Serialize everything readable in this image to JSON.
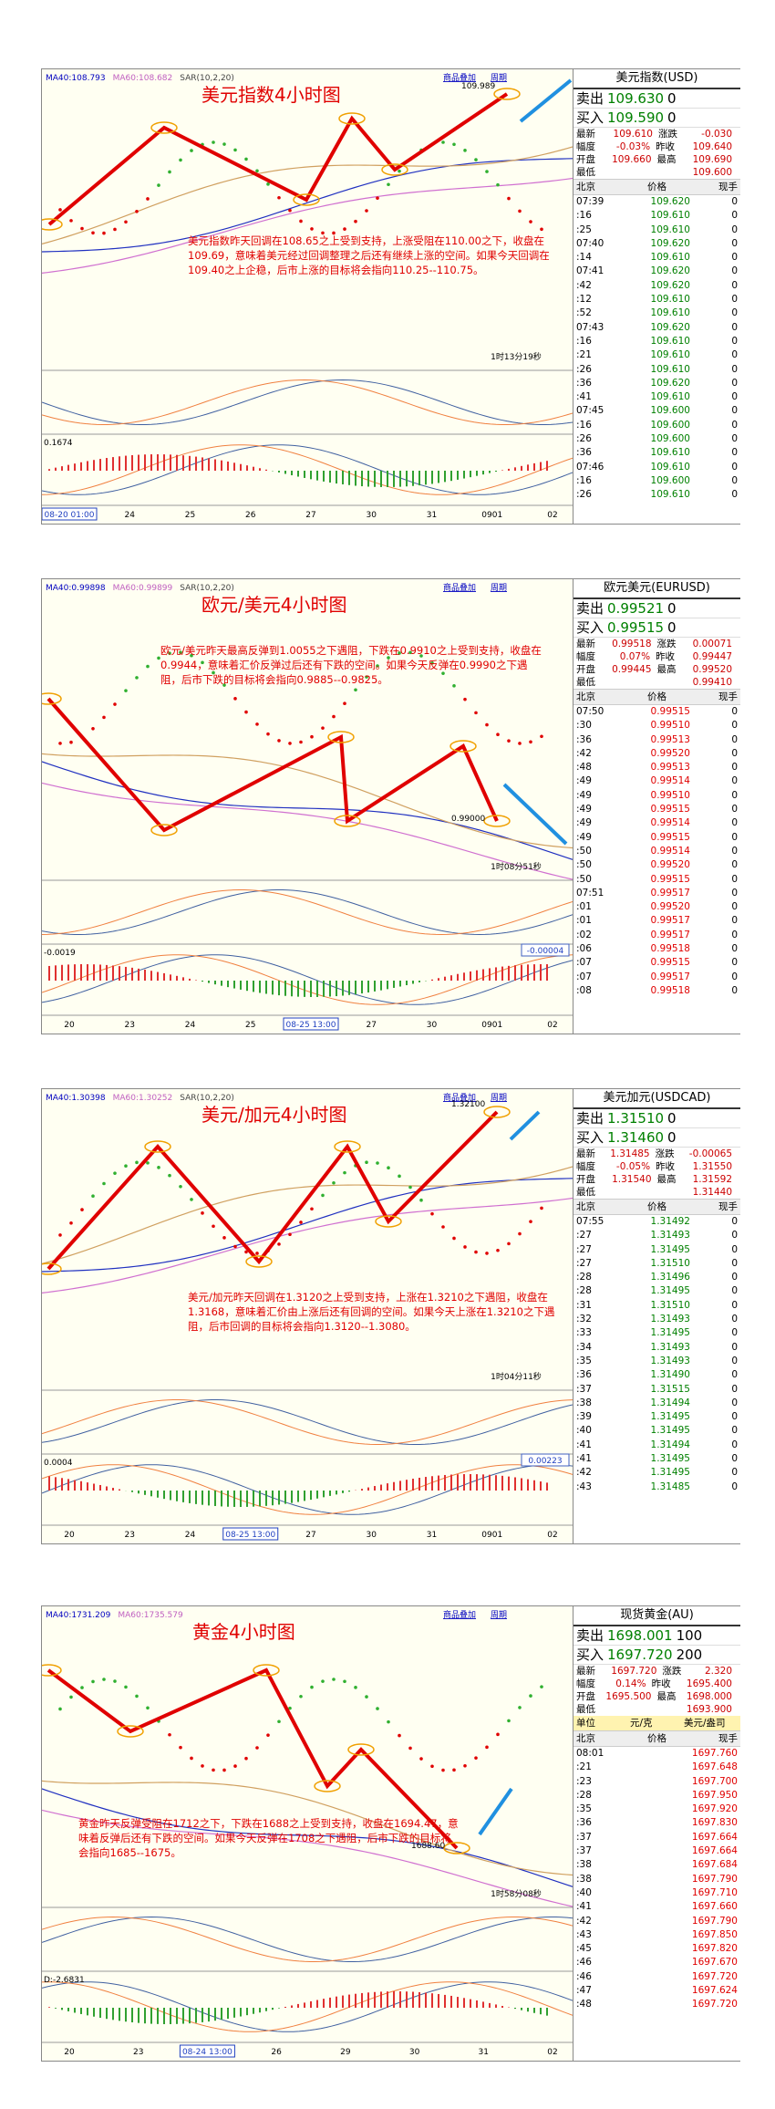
{
  "panels": [
    {
      "title": "美元指数4小时图",
      "toolbar": [
        "商品叠加",
        "周期"
      ],
      "indicators": [
        "MA40:108.793",
        "MA60:108.682",
        "SAR(10,2,20)"
      ],
      "price_label": "109.989",
      "countdown": "1时13分19秒",
      "sub_label": "0.1674",
      "annotation": "美元指数昨天回调在108.65之上受到支持，上涨受阻在110.00之下，收盘在109.69，意味着美元经过回调整理之后还有继续上涨的空间。如果今天回调在109.40之上企稳，后市上涨的目标将会指向110.25--110.75。",
      "xlabels": [
        "08-20 01:00",
        "24",
        "25",
        "26",
        "27",
        "30",
        "31",
        "0901",
        "02"
      ],
      "quote": {
        "name": "美元指数(USD)",
        "sell": [
          "卖出",
          "109.630",
          "0"
        ],
        "buy": [
          "买入",
          "109.590",
          "0"
        ],
        "stats": [
          [
            "最新",
            "109.610",
            "涨跌",
            "-0.030"
          ],
          [
            "幅度",
            "-0.03%",
            "昨收",
            "109.640"
          ],
          [
            "开盘",
            "109.660",
            "最高",
            "109.690"
          ],
          [
            "最低",
            "109.600"
          ]
        ],
        "columns": [
          "北京",
          "价格",
          "现手"
        ],
        "tick_color": "#008000",
        "ticks": [
          [
            "07:39",
            "109.620",
            "0"
          ],
          [
            ":16",
            "109.610",
            "0"
          ],
          [
            ":25",
            "109.610",
            "0"
          ],
          [
            "07:40",
            "109.620",
            "0"
          ],
          [
            ":14",
            "109.610",
            "0"
          ],
          [
            "07:41",
            "109.620",
            "0"
          ],
          [
            ":42",
            "109.620",
            "0"
          ],
          [
            ":12",
            "109.610",
            "0"
          ],
          [
            ":52",
            "109.610",
            "0"
          ],
          [
            "07:43",
            "109.620",
            "0"
          ],
          [
            ":16",
            "109.610",
            "0"
          ],
          [
            ":21",
            "109.610",
            "0"
          ],
          [
            ":26",
            "109.610",
            "0"
          ],
          [
            ":36",
            "109.620",
            "0"
          ],
          [
            ":41",
            "109.610",
            "0"
          ],
          [
            "07:45",
            "109.600",
            "0"
          ],
          [
            ":16",
            "109.600",
            "0"
          ],
          [
            ":26",
            "109.600",
            "0"
          ],
          [
            ":36",
            "109.610",
            "0"
          ],
          [
            "07:46",
            "109.610",
            "0"
          ],
          [
            ":16",
            "109.600",
            "0"
          ],
          [
            ":26",
            "109.610",
            "0"
          ]
        ]
      }
    },
    {
      "title": "欧元/美元4小时图",
      "toolbar": [
        "商品叠加",
        "周期"
      ],
      "indicators": [
        "MA40:0.99898",
        "MA60:0.99899",
        "SAR(10,2,20)"
      ],
      "price_label": "0.99000",
      "countdown": "1时08分51秒",
      "sub_label": "-0.0019",
      "sub_value": "-0.00004",
      "annotation": "欧元/美元昨天最高反弹到1.0055之下遇阻，下跌在0.9910之上受到支持，收盘在0.9944，意味着汇价反弹过后还有下跌的空间。如果今天反弹在0.9990之下遇阻，后市下跌的目标将会指向0.9885--0.9825。",
      "xlabels": [
        "20",
        "23",
        "24",
        "25",
        "08-25 13:00",
        "27",
        "30",
        "0901",
        "02"
      ],
      "quote": {
        "name": "欧元美元(EURUSD)",
        "sell": [
          "卖出",
          "0.99521",
          "0"
        ],
        "buy": [
          "买入",
          "0.99515",
          "0"
        ],
        "stats": [
          [
            "最新",
            "0.99518",
            "涨跌",
            "0.00071"
          ],
          [
            "幅度",
            "0.07%",
            "昨收",
            "0.99447"
          ],
          [
            "开盘",
            "0.99445",
            "最高",
            "0.99520"
          ],
          [
            "最低",
            "0.99410"
          ]
        ],
        "columns": [
          "北京",
          "价格",
          "现手"
        ],
        "tick_color": "#e00000",
        "ticks": [
          [
            "07:50",
            "0.99515",
            "0"
          ],
          [
            ":30",
            "0.99510",
            "0"
          ],
          [
            ":36",
            "0.99513",
            "0"
          ],
          [
            ":42",
            "0.99520",
            "0"
          ],
          [
            ":48",
            "0.99513",
            "0"
          ],
          [
            ":49",
            "0.99514",
            "0"
          ],
          [
            ":49",
            "0.99510",
            "0"
          ],
          [
            ":49",
            "0.99515",
            "0"
          ],
          [
            ":49",
            "0.99514",
            "0"
          ],
          [
            ":49",
            "0.99515",
            "0"
          ],
          [
            ":50",
            "0.99514",
            "0"
          ],
          [
            ":50",
            "0.99520",
            "0"
          ],
          [
            ":50",
            "0.99515",
            "0"
          ],
          [
            "07:51",
            "0.99517",
            "0"
          ],
          [
            ":01",
            "0.99520",
            "0"
          ],
          [
            ":01",
            "0.99517",
            "0"
          ],
          [
            ":02",
            "0.99517",
            "0"
          ],
          [
            ":06",
            "0.99518",
            "0"
          ],
          [
            ":07",
            "0.99515",
            "0"
          ],
          [
            ":07",
            "0.99517",
            "0"
          ],
          [
            ":08",
            "0.99518",
            "0"
          ]
        ]
      }
    },
    {
      "title": "美元/加元4小时图",
      "toolbar": [
        "商品叠加",
        "周期"
      ],
      "indicators": [
        "MA40:1.30398",
        "MA60:1.30252",
        "SAR(10,2,20)"
      ],
      "price_label": "1.32100",
      "countdown": "1时04分11秒",
      "sub_label": "0.0004",
      "sub_value": "0.00223",
      "annotation": "美元/加元昨天回调在1.3120之上受到支持，上涨在1.3210之下遇阻，收盘在1.3168，意味着汇价由上涨后还有回调的空间。如果今天上涨在1.3210之下遇阻，后市回调的目标将会指向1.3120--1.3080。",
      "xlabels": [
        "20",
        "23",
        "24",
        "08-25 13:00",
        "27",
        "30",
        "31",
        "0901",
        "02"
      ],
      "quote": {
        "name": "美元加元(USDCAD)",
        "sell": [
          "卖出",
          "1.31510",
          "0"
        ],
        "buy": [
          "买入",
          "1.31460",
          "0"
        ],
        "stats": [
          [
            "最新",
            "1.31485",
            "涨跌",
            "-0.00065"
          ],
          [
            "幅度",
            "-0.05%",
            "昨收",
            "1.31550"
          ],
          [
            "开盘",
            "1.31540",
            "最高",
            "1.31592"
          ],
          [
            "最低",
            "1.31440"
          ]
        ],
        "columns": [
          "北京",
          "价格",
          "现手"
        ],
        "tick_color": "#008000",
        "ticks": [
          [
            "07:55",
            "1.31492",
            "0"
          ],
          [
            ":27",
            "1.31493",
            "0"
          ],
          [
            ":27",
            "1.31495",
            "0"
          ],
          [
            ":27",
            "1.31510",
            "0"
          ],
          [
            ":28",
            "1.31496",
            "0"
          ],
          [
            ":28",
            "1.31495",
            "0"
          ],
          [
            ":31",
            "1.31510",
            "0"
          ],
          [
            ":32",
            "1.31493",
            "0"
          ],
          [
            ":33",
            "1.31495",
            "0"
          ],
          [
            ":34",
            "1.31493",
            "0"
          ],
          [
            ":35",
            "1.31493",
            "0"
          ],
          [
            ":36",
            "1.31490",
            "0"
          ],
          [
            ":37",
            "1.31515",
            "0"
          ],
          [
            ":38",
            "1.31494",
            "0"
          ],
          [
            ":39",
            "1.31495",
            "0"
          ],
          [
            ":40",
            "1.31495",
            "0"
          ],
          [
            ":41",
            "1.31494",
            "0"
          ],
          [
            ":41",
            "1.31495",
            "0"
          ],
          [
            ":42",
            "1.31495",
            "0"
          ],
          [
            ":43",
            "1.31485",
            "0"
          ]
        ]
      }
    },
    {
      "title": "黄金4小时图",
      "toolbar": [
        "商品叠加",
        "周期"
      ],
      "indicators": [
        "MA40:1731.209",
        "MA60:1735.579"
      ],
      "price_label": "1688.60",
      "countdown": "1时58分08秒",
      "sub_label": "D:-2.6831",
      "annotation": "黄金昨天反弹受阻在1712之下，下跌在1688之上受到支持，收盘在1694.47，意味着反弹后还有下跌的空间。如果今天反弹在1708之下遇阻，后市下跌的目标将会指向1685--1675。",
      "xlabels": [
        "20",
        "23",
        "08-24 13:00",
        "26",
        "29",
        "30",
        "31",
        "02"
      ],
      "quote": {
        "name": "现货黄金(AU)",
        "sell": [
          "卖出",
          "1698.001",
          "100"
        ],
        "buy": [
          "买入",
          "1697.720",
          "200"
        ],
        "stats": [
          [
            "最新",
            "1697.720",
            "涨跌",
            "2.320"
          ],
          [
            "幅度",
            "0.14%",
            "昨收",
            "1695.400"
          ],
          [
            "开盘",
            "1695.500",
            "最高",
            "1698.000"
          ],
          [
            "最低",
            "1693.900"
          ]
        ],
        "units": [
          "单位",
          "元/克",
          "美元/盎司"
        ],
        "columns": [
          "北京",
          "价格",
          "现手"
        ],
        "tick_color": "#e00000",
        "ticks": [
          [
            "08:01",
            "1697.760"
          ],
          [
            ":21",
            "1697.648"
          ],
          [
            ":23",
            "1697.700"
          ],
          [
            ":28",
            "1697.950"
          ],
          [
            ":35",
            "1697.920"
          ],
          [
            ":36",
            "1697.830"
          ],
          [
            ":37",
            "1697.664"
          ],
          [
            ":37",
            "1697.664"
          ],
          [
            ":38",
            "1697.684"
          ],
          [
            ":38",
            "1697.790"
          ],
          [
            ":40",
            "1697.710"
          ],
          [
            ":41",
            "1697.660"
          ],
          [
            ":42",
            "1697.790"
          ],
          [
            ":43",
            "1697.850"
          ],
          [
            ":45",
            "1697.820"
          ],
          [
            ":46",
            "1697.670"
          ],
          [
            ":46",
            "1697.720"
          ],
          [
            ":47",
            "1697.624"
          ],
          [
            ":48",
            "1697.720"
          ]
        ]
      }
    }
  ]
}
